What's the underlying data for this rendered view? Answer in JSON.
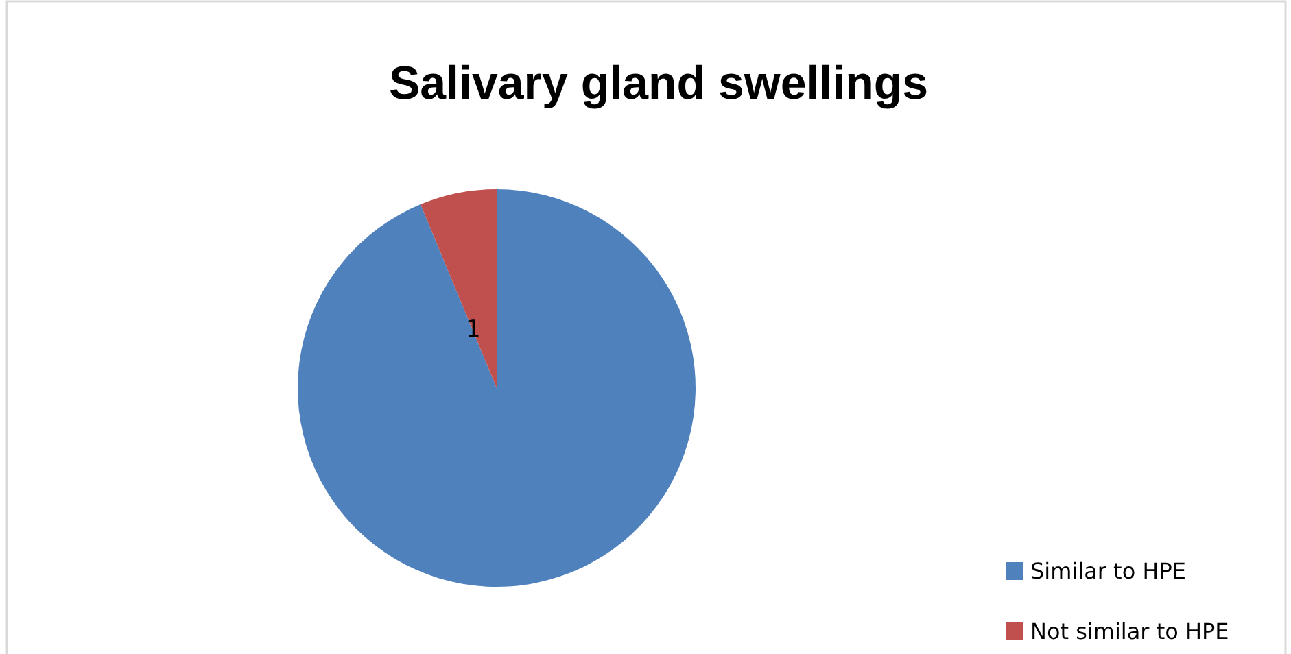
{
  "chart_data": {
    "type": "pie",
    "title": "Salivary gland swellings",
    "categories": [
      "Similar to HPE",
      "Not similar to HPE"
    ],
    "values": [
      15,
      1
    ],
    "colors": [
      "#4f81bd",
      "#c0504d"
    ],
    "value_labels": [
      null,
      "1"
    ],
    "legend": "right"
  }
}
